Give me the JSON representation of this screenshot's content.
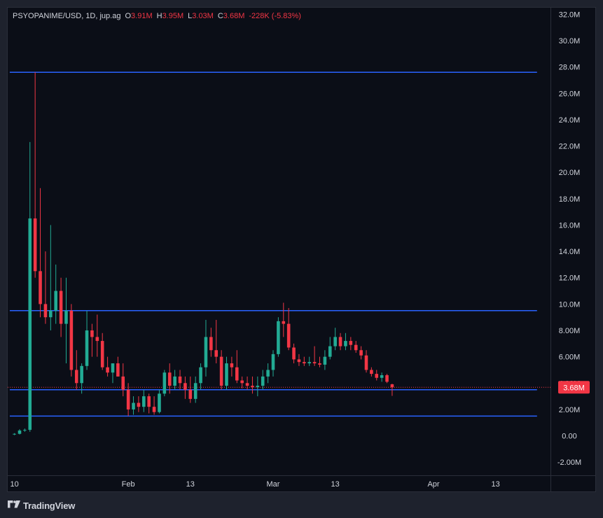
{
  "legend": {
    "symbol": "PSYOPANIME/USD, 1D, jup.ag",
    "o_label": "O",
    "o_value": "3.91M",
    "h_label": "H",
    "h_value": "3.95M",
    "l_label": "L",
    "l_value": "3.03M",
    "c_label": "C",
    "c_value": "3.68M",
    "change": "-228K (-5.83%)"
  },
  "branding": {
    "name": "TradingView"
  },
  "colors": {
    "up": "#22ab94",
    "down": "#f23645",
    "level": "#2962ff",
    "bg": "#0b0e17",
    "axis_text": "#d1d4dc"
  },
  "chart_data": {
    "type": "candlestick",
    "y_unit": "M",
    "ylim": [
      -3,
      32.5
    ],
    "y_ticks": [
      "32.0M",
      "30.0M",
      "28.0M",
      "26.0M",
      "24.0M",
      "22.0M",
      "20.0M",
      "18.0M",
      "16.0M",
      "14.0M",
      "12.0M",
      "10.0M",
      "8.00M",
      "6.00M",
      "4.00M",
      "2.00M",
      "0.00",
      "-2.00M"
    ],
    "y_tick_values": [
      32,
      30,
      28,
      26,
      24,
      22,
      20,
      18,
      16,
      14,
      12,
      10,
      8,
      6,
      4,
      2,
      0,
      -2
    ],
    "x_ticks": [
      {
        "label": "10",
        "day": 0
      },
      {
        "label": "Feb",
        "day": 22
      },
      {
        "label": "13",
        "day": 34
      },
      {
        "label": "Mar",
        "day": 50
      },
      {
        "label": "13",
        "day": 62
      },
      {
        "label": "Apr",
        "day": 81
      },
      {
        "label": "13",
        "day": 93
      }
    ],
    "x_range_days": [
      -1.3,
      103.6
    ],
    "last_price": {
      "value": 3.68,
      "label": "3.68M"
    },
    "horizontal_levels": [
      27.6,
      9.5,
      3.5,
      1.5
    ],
    "level_end_day": 101,
    "candles": [
      [
        0.1,
        0.2,
        0.05,
        0.15
      ],
      [
        0.15,
        0.5,
        0.1,
        0.4
      ],
      [
        0.4,
        0.55,
        0.3,
        0.45
      ],
      [
        0.45,
        22.3,
        0.3,
        16.5
      ],
      [
        16.5,
        27.6,
        12.0,
        12.5
      ],
      [
        12.5,
        18.8,
        9.0,
        10.0
      ],
      [
        10.0,
        14.0,
        8.5,
        9.0
      ],
      [
        9.0,
        16.0,
        8.0,
        9.5
      ],
      [
        9.5,
        13.0,
        8.5,
        11.0
      ],
      [
        11.0,
        12.0,
        7.5,
        8.5
      ],
      [
        8.5,
        12.0,
        5.5,
        9.5
      ],
      [
        9.5,
        10.0,
        4.5,
        5.0
      ],
      [
        5.0,
        6.5,
        3.5,
        4.0
      ],
      [
        4.0,
        5.5,
        3.2,
        5.3
      ],
      [
        5.3,
        9.5,
        5.0,
        8.0
      ],
      [
        8.0,
        8.5,
        6.0,
        7.5
      ],
      [
        7.5,
        9.2,
        6.0,
        7.2
      ],
      [
        7.2,
        7.8,
        5.0,
        5.2
      ],
      [
        5.2,
        6.0,
        4.5,
        4.8
      ],
      [
        4.8,
        5.5,
        4.0,
        5.5
      ],
      [
        5.5,
        6.0,
        4.5,
        4.5
      ],
      [
        4.5,
        5.5,
        3.0,
        3.5
      ],
      [
        3.5,
        4.0,
        1.5,
        2.0
      ],
      [
        2.0,
        3.0,
        1.6,
        2.5
      ],
      [
        2.5,
        3.0,
        1.8,
        2.2
      ],
      [
        2.2,
        3.5,
        1.8,
        3.0
      ],
      [
        3.0,
        3.2,
        1.7,
        2.2
      ],
      [
        2.2,
        3.0,
        1.6,
        1.8
      ],
      [
        1.8,
        3.5,
        1.7,
        3.2
      ],
      [
        3.2,
        5.0,
        3.0,
        4.8
      ],
      [
        4.8,
        5.5,
        3.2,
        3.8
      ],
      [
        3.8,
        5.0,
        3.5,
        4.5
      ],
      [
        4.5,
        5.0,
        3.5,
        4.0
      ],
      [
        4.0,
        4.5,
        2.8,
        3.5
      ],
      [
        3.5,
        4.5,
        2.5,
        2.8
      ],
      [
        2.8,
        4.5,
        2.5,
        4.0
      ],
      [
        4.0,
        5.5,
        3.5,
        5.2
      ],
      [
        5.2,
        8.8,
        4.5,
        7.5
      ],
      [
        7.5,
        8.2,
        6.0,
        6.5
      ],
      [
        6.5,
        8.8,
        5.5,
        6.0
      ],
      [
        6.0,
        6.5,
        3.5,
        3.8
      ],
      [
        3.8,
        6.0,
        3.5,
        5.5
      ],
      [
        5.5,
        6.0,
        4.5,
        5.2
      ],
      [
        5.2,
        6.5,
        4.0,
        4.2
      ],
      [
        4.2,
        4.5,
        3.6,
        4.0
      ],
      [
        4.0,
        4.5,
        3.5,
        3.8
      ],
      [
        3.8,
        4.5,
        3.2,
        3.7
      ],
      [
        3.7,
        4.5,
        3.0,
        3.8
      ],
      [
        3.8,
        5.0,
        3.5,
        4.5
      ],
      [
        4.5,
        5.5,
        4.0,
        5.0
      ],
      [
        5.0,
        6.5,
        4.5,
        6.2
      ],
      [
        6.2,
        9.0,
        6.0,
        8.7
      ],
      [
        8.7,
        10.1,
        7.5,
        8.5
      ],
      [
        8.5,
        9.7,
        6.5,
        6.7
      ],
      [
        6.7,
        7.0,
        5.5,
        5.8
      ],
      [
        5.8,
        6.2,
        5.3,
        5.6
      ],
      [
        5.6,
        6.0,
        5.3,
        5.5
      ],
      [
        5.5,
        6.0,
        5.3,
        5.6
      ],
      [
        5.6,
        6.8,
        5.3,
        5.5
      ],
      [
        5.5,
        6.0,
        5.2,
        5.4
      ],
      [
        5.4,
        6.5,
        5.0,
        6.0
      ],
      [
        6.0,
        7.5,
        5.8,
        6.8
      ],
      [
        6.8,
        8.2,
        6.5,
        7.5
      ],
      [
        7.5,
        7.8,
        6.5,
        6.8
      ],
      [
        6.8,
        7.8,
        6.5,
        7.2
      ],
      [
        7.2,
        7.5,
        6.5,
        6.9
      ],
      [
        6.9,
        7.2,
        6.3,
        6.5
      ],
      [
        6.5,
        6.8,
        5.8,
        6.1
      ],
      [
        6.1,
        6.5,
        4.8,
        5.0
      ],
      [
        5.0,
        5.2,
        4.5,
        4.7
      ],
      [
        4.7,
        5.0,
        4.2,
        4.4
      ],
      [
        4.4,
        4.8,
        4.1,
        4.6
      ],
      [
        4.6,
        4.7,
        4.0,
        4.1
      ],
      [
        3.91,
        3.95,
        3.03,
        3.68
      ]
    ]
  }
}
